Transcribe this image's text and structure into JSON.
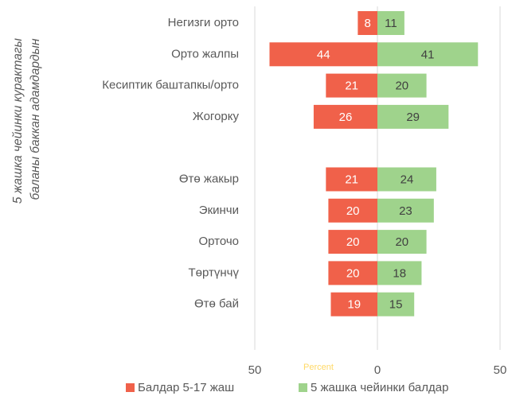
{
  "chart_data": {
    "type": "butterfly-bar",
    "y_label": [
      "5 жашка чейинки курактагы",
      "баланы баккан адамдардын"
    ],
    "x_label": "Percent",
    "categories": [
      "Негизги орто",
      "Орто жалпы",
      "Кесиптик баштапкы/орто",
      "Жогорку",
      null,
      "Өтө жакыр",
      "Экинчи",
      "Орточо",
      "Төртүнчү",
      "Өтө бай"
    ],
    "series": [
      {
        "name": "Балдар 5-17 жаш",
        "color": "#f0614a",
        "values": [
          -8,
          -44,
          -21,
          -26,
          null,
          -21,
          -20,
          -20,
          -20,
          -19
        ],
        "value_labels": [
          "8",
          "44",
          "21",
          "26",
          null,
          "21",
          "20",
          "20",
          "20",
          "19"
        ]
      },
      {
        "name": "5 жашка чейинки балдар",
        "color": "#9fd38c",
        "values": [
          11,
          41,
          20,
          29,
          null,
          24,
          23,
          20,
          18,
          15
        ]
      }
    ],
    "xlim": [
      -50,
      50
    ],
    "xticks": [
      {
        "value": -50,
        "label": "50"
      },
      0,
      50
    ],
    "grid": true,
    "legend": "bottom"
  }
}
